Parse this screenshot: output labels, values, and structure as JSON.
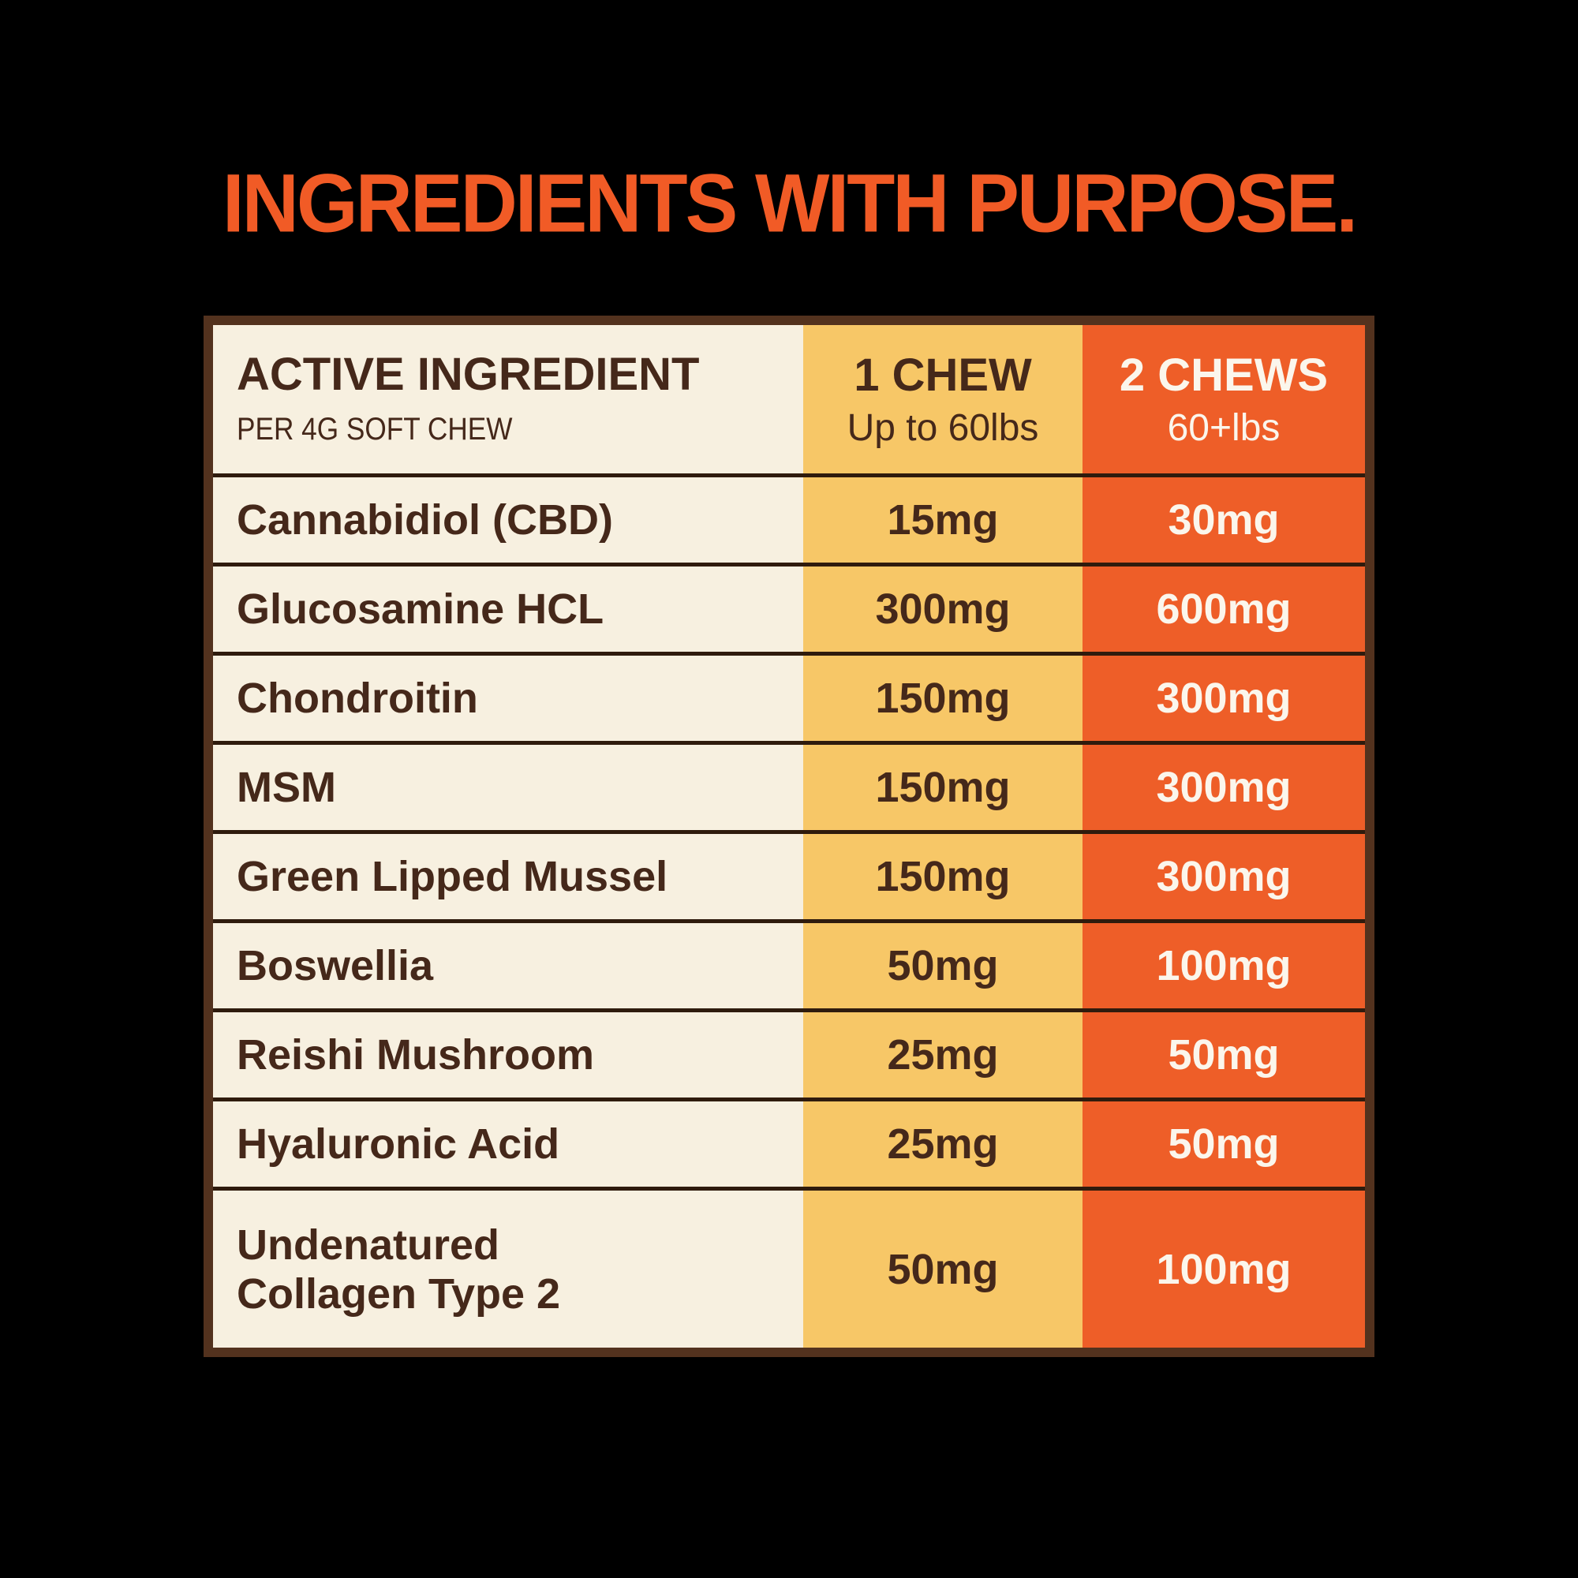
{
  "title": {
    "text": "INGREDIENTS WITH PURPOSE."
  },
  "colors": {
    "background": "#000000",
    "title_orange": "#F15B26",
    "cream": "#F7F0E0",
    "yellow": "#F7C767",
    "orange": "#EE5E28",
    "border_brown": "#53321E",
    "divider_brown": "#2F1B0D",
    "text_brown": "#45281A",
    "text_cream": "#FBF6EC"
  },
  "table": {
    "columns": [
      {
        "header": "ACTIVE INGREDIENT",
        "subheader": "PER 4G SOFT CHEW"
      },
      {
        "header": "1 CHEW",
        "subheader": "Up to 60lbs"
      },
      {
        "header": "2 CHEWS",
        "subheader": "60+lbs"
      }
    ],
    "rows": [
      {
        "ingredient": "Cannabidiol (CBD)",
        "one_chew": "15mg",
        "two_chews": "30mg"
      },
      {
        "ingredient": "Glucosamine HCL",
        "one_chew": "300mg",
        "two_chews": "600mg"
      },
      {
        "ingredient": "Chondroitin",
        "one_chew": "150mg",
        "two_chews": "300mg"
      },
      {
        "ingredient": "MSM",
        "one_chew": "150mg",
        "two_chews": "300mg"
      },
      {
        "ingredient": "Green Lipped Mussel",
        "one_chew": "150mg",
        "two_chews": "300mg"
      },
      {
        "ingredient": "Boswellia",
        "one_chew": "50mg",
        "two_chews": "100mg"
      },
      {
        "ingredient": "Reishi Mushroom",
        "one_chew": "25mg",
        "two_chews": "50mg"
      },
      {
        "ingredient": "Hyaluronic Acid",
        "one_chew": "25mg",
        "two_chews": "50mg"
      },
      {
        "ingredient": "Undenatured\nCollagen Type 2",
        "one_chew": "50mg",
        "two_chews": "100mg"
      }
    ]
  },
  "chart_data": {
    "type": "table",
    "title": "INGREDIENTS WITH PURPOSE.",
    "columns": [
      "ACTIVE INGREDIENT (PER 4G SOFT CHEW)",
      "1 CHEW (Up to 60lbs)",
      "2 CHEWS (60+lbs)"
    ],
    "rows": [
      [
        "Cannabidiol (CBD)",
        "15mg",
        "30mg"
      ],
      [
        "Glucosamine HCL",
        "300mg",
        "600mg"
      ],
      [
        "Chondroitin",
        "150mg",
        "300mg"
      ],
      [
        "MSM",
        "150mg",
        "300mg"
      ],
      [
        "Green Lipped Mussel",
        "150mg",
        "300mg"
      ],
      [
        "Boswellia",
        "50mg",
        "100mg"
      ],
      [
        "Reishi Mushroom",
        "25mg",
        "50mg"
      ],
      [
        "Hyaluronic Acid",
        "25mg",
        "50mg"
      ],
      [
        "Undenatured Collagen Type 2",
        "50mg",
        "100mg"
      ]
    ],
    "series": [
      {
        "name": "1 CHEW (Up to 60lbs)",
        "values_mg": [
          15,
          300,
          150,
          150,
          150,
          50,
          25,
          25,
          50
        ]
      },
      {
        "name": "2 CHEWS (60+lbs)",
        "values_mg": [
          30,
          600,
          300,
          300,
          300,
          100,
          50,
          50,
          100
        ]
      }
    ],
    "categories": [
      "Cannabidiol (CBD)",
      "Glucosamine HCL",
      "Chondroitin",
      "MSM",
      "Green Lipped Mussel",
      "Boswellia",
      "Reishi Mushroom",
      "Hyaluronic Acid",
      "Undenatured Collagen Type 2"
    ]
  }
}
